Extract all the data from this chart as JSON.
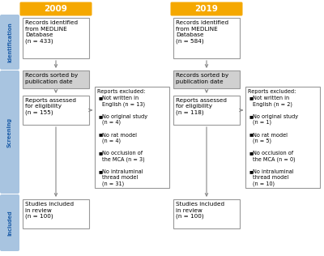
{
  "bg_color": "#ffffff",
  "year_labels": [
    "2009",
    "2019"
  ],
  "year_banner_color": "#F5A800",
  "year_banner_text_color": "#ffffff",
  "sidebar_labels": [
    "Identification",
    "Screening",
    "Included"
  ],
  "sidebar_color": "#A8C4E0",
  "sidebar_text_color": "#2060AA",
  "box_border_color": "#999999",
  "box_bg_white": "#ffffff",
  "box_bg_gray": "#D0D0D0",
  "arrow_color": "#888888",
  "left_col": {
    "box1": "Records identified\nfrom MEDLINE\nDatabase\n(n = 433)",
    "box2": "Records sorted by\npublication date",
    "box3": "Reports assessed\nfor eligibility\n(n = 155)",
    "box4": "Studies included\nin review\n(n = 100)",
    "excluded_title": "Reports excluded:",
    "excluded_items": [
      "Not written in\nEnglish (n = 13)",
      "No original study\n(n = 4)",
      "No rat model\n(n = 4)",
      "No occlusion of\nthe MCA (n = 3)",
      "No intraluminal\nthread model\n(n = 31)"
    ]
  },
  "right_col": {
    "box1": "Records identified\nfrom MEDLINE\nDatabase\n(n = 584)",
    "box2": "Records sorted by\npublication date",
    "box3": "Reports assessed\nfor eligibility\n(n = 118)",
    "box4": "Studies included\nin review\n(n = 100)",
    "excluded_title": "Reports excluded:",
    "excluded_items": [
      "Not written in\nEnglish (n = 2)",
      "No original study\n(n = 1)",
      "No rat model\n(n = 5)",
      "No occlusion of\nthe MCA (n = 0)",
      "No intraluminal\nthread model\n(n = 10)"
    ]
  }
}
